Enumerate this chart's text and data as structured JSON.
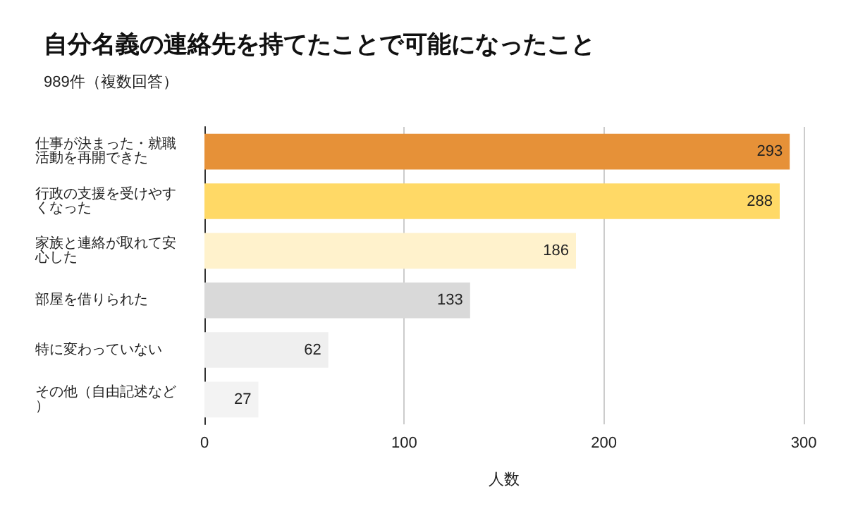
{
  "chart_data": {
    "type": "bar",
    "orientation": "horizontal",
    "title": "自分名義の連絡先を持てたことで可能になったこと",
    "subtitle": "989件（複数回答）",
    "xlabel": "人数",
    "categories": [
      "仕事が決まった・就職活動を再開できた",
      "行政の支援を受けやすくなった",
      "家族と連絡が取れて安心した",
      "部屋を借りられた",
      "特に変わっていない",
      "その他（自由記述など）"
    ],
    "values": [
      293,
      288,
      186,
      133,
      62,
      27
    ],
    "colors": [
      "#e69138",
      "#ffd966",
      "#fff2cc",
      "#d9d9d9",
      "#efefef",
      "#f3f3f3"
    ],
    "xlim": [
      0,
      300
    ],
    "xticks": [
      0,
      100,
      200,
      300
    ],
    "grid": "x",
    "data_labels": true
  }
}
